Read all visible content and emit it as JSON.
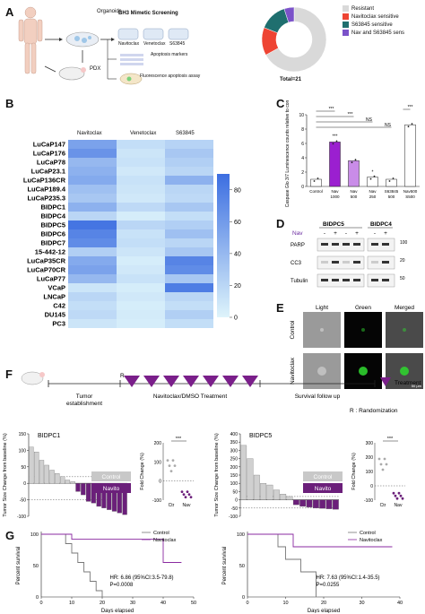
{
  "panels": {
    "a": {
      "letter": "A",
      "organoids_label": "Organoids",
      "pdx_label": "PDX",
      "screen_title": "BH3 Mimetic Screening",
      "drugs": [
        "Navitoclax",
        "Venetoclax",
        "S63845"
      ],
      "apoptosis_label": "Apoptosis markers",
      "fluor_label": "Fluorescence apoptosis assay",
      "donut_total": "Total=21",
      "legend": [
        {
          "label": "Resistant",
          "color": "#d9d9d9"
        },
        {
          "label": "Navitoclax sensitive",
          "color": "#ee4433"
        },
        {
          "label": "S63845 sensitive",
          "color": "#1f6f6f"
        },
        {
          "label": "Nav and S63845 sens",
          "color": "#7b52c9"
        }
      ],
      "donut_fractions": [
        0.67,
        0.14,
        0.14,
        0.05
      ]
    },
    "b": {
      "letter": "B",
      "columns": [
        "Navitoclax",
        "Venetoclax",
        "S63845"
      ],
      "rows": [
        "LuCaP147",
        "LuCaP176",
        "LuCaP78",
        "LuCaP23.1",
        "LuCaP136CR",
        "LuCaP189.4",
        "LuCaP235.3",
        "BIDPC1",
        "BIDPC4",
        "BIDPC5",
        "BIDPC6",
        "BIDPC7",
        "15-442-12",
        "LuCaP35CR",
        "LuCaP70CR",
        "LuCaP77",
        "VCaP",
        "LNCaP",
        "C42",
        "DU145",
        "PC3"
      ],
      "values": [
        [
          55,
          15,
          22
        ],
        [
          65,
          10,
          30
        ],
        [
          40,
          12,
          25
        ],
        [
          45,
          8,
          20
        ],
        [
          50,
          12,
          45
        ],
        [
          35,
          10,
          20
        ],
        [
          30,
          8,
          18
        ],
        [
          45,
          18,
          30
        ],
        [
          20,
          5,
          15
        ],
        [
          85,
          20,
          25
        ],
        [
          75,
          12,
          35
        ],
        [
          70,
          15,
          20
        ],
        [
          25,
          10,
          30
        ],
        [
          50,
          5,
          75
        ],
        [
          55,
          8,
          70
        ],
        [
          40,
          12,
          30
        ],
        [
          10,
          5,
          80
        ],
        [
          20,
          8,
          20
        ],
        [
          15,
          5,
          15
        ],
        [
          18,
          6,
          25
        ],
        [
          10,
          5,
          15
        ]
      ],
      "scale_ticks": [
        "80",
        "60",
        "40",
        "20",
        "0"
      ]
    },
    "c": {
      "letter": "C",
      "ylabel": "Caspase Glo 3/7 Luminescence counts relative to control",
      "yticks": [
        "0",
        "2",
        "4",
        "6",
        "8",
        "10"
      ],
      "bars": [
        {
          "label": "Control",
          "value": 1.0,
          "color": "#ffffff"
        },
        {
          "label": "Nav 1000",
          "value": 6.2,
          "color": "#9b1fd0"
        },
        {
          "label": "Nav 500",
          "value": 3.6,
          "color": "#c98ce8"
        },
        {
          "label": "Nav 250",
          "value": 1.3,
          "color": "#ffffff"
        },
        {
          "label": "S63845 500",
          "value": 1.0,
          "color": "#ffffff"
        },
        {
          "label": "Nav500 S500",
          "value": 8.6,
          "color": "#ffffff"
        }
      ],
      "sig": [
        "***",
        "***",
        "NS",
        "NS",
        "***"
      ]
    },
    "d": {
      "letter": "D",
      "col1": "BIDPC5",
      "col2": "BIDPC4",
      "nav": "Nav",
      "signs": [
        "-",
        "+",
        "-",
        "+",
        "-",
        "+"
      ],
      "rows": [
        "PARP",
        "CC3",
        "Tubulin"
      ],
      "kda": [
        "100",
        "20",
        "50"
      ]
    },
    "e": {
      "letter": "E",
      "cols": [
        "Light",
        "Green",
        "Merged"
      ],
      "rows": [
        "Control",
        "Navitoclax"
      ],
      "scale": "50 μm"
    },
    "f": {
      "letter": "F",
      "r_label": "R",
      "step1": "Tumor establishment",
      "step2": "Navitoclax/DMSO Treatment",
      "step3": "Survival follow up",
      "treatment_legend": "Treatment",
      "randomization": "R : Randomization",
      "left": {
        "title": "BIDPC1",
        "ylabel": "Tumor Size Change from baseline (%)",
        "yticks": [
          "150",
          "100",
          "50",
          "0",
          "-50",
          "-100"
        ],
        "control_values": [
          110,
          95,
          70,
          55,
          40,
          30,
          20,
          10,
          5
        ],
        "navito_values": [
          -25,
          -35,
          -55,
          -60,
          -70,
          -75,
          -80,
          -85,
          -90,
          -95
        ],
        "legend": [
          "Control",
          "Navito"
        ],
        "fold_title": "Fold Change (%)",
        "fold_yticks": [
          "200",
          "100",
          "0",
          "-100"
        ],
        "fold_xticks": [
          "Ctr",
          "Nav"
        ],
        "fold_sig": "***"
      },
      "right": {
        "title": "BIDPC5",
        "ylabel": "Tumor Size Change from baseline (%)",
        "yticks": [
          "400",
          "350",
          "300",
          "250",
          "200",
          "150",
          "100",
          "50",
          "0",
          "-50",
          "-100"
        ],
        "control_values": [
          330,
          250,
          150,
          100,
          90,
          60,
          35,
          20
        ],
        "navito_values": [
          -30,
          -40,
          -45,
          -50,
          -52,
          -55,
          -58
        ],
        "legend": [
          "Control",
          "Navito"
        ],
        "fold_title": "Fold Change (%)",
        "fold_yticks": [
          "300",
          "200",
          "100",
          "0",
          "-100"
        ],
        "fold_xticks": [
          "Ctr",
          "Nav"
        ],
        "fold_sig": "***"
      }
    },
    "g": {
      "letter": "G",
      "left": {
        "ylabel": "Percent survival",
        "xlabel": "Days elapsed",
        "yticks": [
          "0",
          "50",
          "100"
        ],
        "xticks": [
          "0",
          "10",
          "20",
          "30",
          "40",
          "50"
        ],
        "legend": [
          "Control",
          "Navitoclax"
        ],
        "hr": "HR: 6.86 (95%CI:3.5-79.8)",
        "p": "P=0.0008"
      },
      "right": {
        "ylabel": "Percent survival",
        "xlabel": "Days elapsed",
        "yticks": [
          "0",
          "50",
          "100"
        ],
        "xticks": [
          "0",
          "10",
          "20",
          "30",
          "40"
        ],
        "legend": [
          "Control",
          "Navitoclax"
        ],
        "hr": "HR: 7.63 (95%CI:1.4-35.5)",
        "p": "P=0.0255"
      }
    }
  }
}
